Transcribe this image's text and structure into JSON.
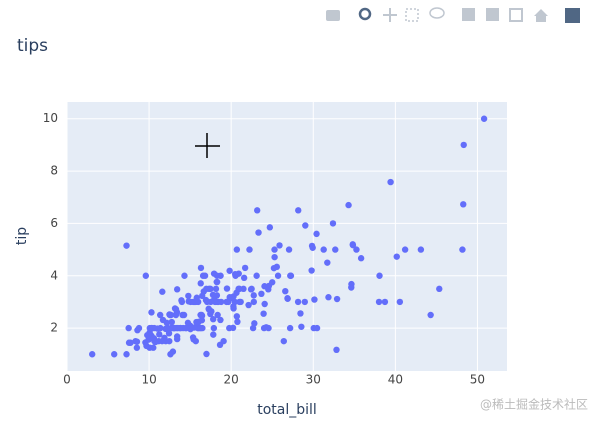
{
  "chart_data": {
    "type": "scatter",
    "title": "tips",
    "x_label": "total_bill",
    "y_label": "tip",
    "color": "#636efa",
    "grid": true,
    "xlim": [
      0,
      53.6
    ],
    "ylim": [
      0.36,
      10.64
    ],
    "xticks": [
      0,
      10,
      20,
      30,
      40,
      50
    ],
    "yticks": [
      2,
      4,
      6,
      8,
      10
    ],
    "x": [
      16.99,
      10.34,
      21.01,
      23.68,
      24.59,
      25.29,
      8.77,
      26.88,
      15.04,
      14.78,
      10.27,
      35.26,
      15.42,
      18.43,
      14.83,
      21.58,
      10.33,
      16.29,
      16.97,
      20.65,
      17.92,
      20.29,
      15.77,
      39.42,
      19.82,
      17.81,
      13.37,
      12.69,
      21.7,
      19.65,
      9.55,
      18.35,
      15.06,
      20.69,
      17.78,
      24.06,
      16.31,
      16.93,
      18.69,
      31.27,
      16.04,
      17.46,
      13.94,
      9.68,
      30.4,
      18.29,
      22.23,
      32.4,
      28.55,
      18.04,
      12.54,
      10.29,
      34.81,
      9.94,
      25.56,
      19.49,
      38.01,
      26.41,
      11.24,
      48.27,
      20.29,
      13.81,
      11.02,
      18.29,
      17.59,
      20.08,
      16.45,
      3.07,
      20.23,
      15.01,
      12.02,
      17.07,
      26.86,
      25.28,
      14.73,
      10.51,
      17.92,
      27.2,
      22.76,
      17.29,
      19.44,
      16.66,
      10.07,
      32.68,
      15.98,
      34.83,
      13.03,
      18.28,
      24.71,
      21.16,
      28.97,
      22.49,
      5.75,
      16.32,
      22.75,
      40.17,
      27.28,
      12.03,
      21.01,
      12.46,
      11.35,
      15.38,
      44.3,
      22.42,
      20.92,
      15.36,
      20.49,
      25.21,
      18.24,
      14.31,
      14.0,
      7.25,
      38.07,
      23.95,
      25.71,
      17.31,
      29.93,
      10.65,
      12.43,
      24.08,
      11.69,
      13.42,
      14.26,
      15.95,
      12.48,
      29.8,
      8.52,
      14.52,
      11.38,
      22.82,
      19.08,
      20.27,
      11.17,
      12.26,
      18.26,
      8.51,
      10.33,
      14.15,
      16.0,
      13.16,
      17.47,
      34.3,
      41.19,
      27.05,
      16.43,
      8.35,
      18.64,
      11.87,
      9.78,
      7.51,
      14.07,
      13.13,
      17.26,
      24.55,
      19.77,
      29.85,
      48.17,
      25.0,
      13.39,
      16.49,
      21.5,
      12.66,
      16.21,
      13.81,
      17.51,
      24.52,
      20.76,
      31.71,
      10.59,
      10.63,
      50.81,
      15.81,
      7.25,
      31.85,
      16.82,
      32.9,
      17.89,
      14.48,
      9.6,
      34.63,
      34.65,
      23.33,
      45.35,
      23.17,
      40.55,
      20.69,
      20.9,
      30.46,
      18.15,
      23.1,
      15.69,
      19.81,
      28.44,
      15.48,
      16.58,
      7.56,
      10.34,
      43.11,
      13.0,
      13.51,
      18.71,
      12.74,
      13.0,
      16.4,
      20.53,
      16.47,
      26.59,
      38.73,
      24.27,
      12.76,
      30.06,
      25.89,
      48.33,
      13.27,
      28.17,
      12.9,
      28.15,
      11.59,
      7.74,
      30.14,
      12.16,
      13.42,
      8.58,
      15.98,
      13.42,
      16.27,
      10.09,
      20.45,
      13.28,
      22.12,
      24.01,
      15.69,
      11.61,
      10.77,
      15.53,
      10.07,
      12.6,
      32.83,
      35.83,
      29.03,
      27.18,
      22.67,
      17.82,
      18.78
    ],
    "values": [
      1.01,
      1.66,
      3.5,
      3.31,
      3.61,
      4.71,
      2.0,
      3.12,
      1.96,
      3.23,
      1.71,
      5.0,
      1.57,
      3.0,
      3.02,
      3.92,
      1.67,
      3.71,
      3.5,
      3.35,
      4.08,
      2.75,
      2.23,
      7.58,
      3.18,
      2.34,
      2.0,
      2.0,
      4.3,
      3.0,
      1.45,
      2.5,
      3.0,
      2.45,
      3.27,
      3.6,
      2.0,
      3.07,
      2.31,
      5.0,
      2.24,
      2.54,
      3.06,
      1.32,
      5.6,
      3.0,
      5.0,
      6.0,
      2.05,
      3.0,
      2.5,
      2.6,
      5.2,
      1.56,
      4.34,
      3.51,
      3.0,
      1.5,
      1.76,
      6.73,
      3.21,
      2.0,
      1.98,
      3.76,
      2.64,
      3.15,
      2.47,
      1.0,
      2.01,
      2.09,
      1.97,
      3.0,
      3.14,
      5.0,
      2.2,
      1.25,
      3.08,
      4.0,
      3.0,
      2.71,
      3.0,
      3.4,
      1.83,
      5.0,
      2.03,
      5.17,
      2.0,
      4.0,
      5.85,
      3.0,
      3.0,
      3.5,
      1.0,
      4.3,
      3.25,
      4.73,
      4.0,
      1.5,
      3.0,
      1.5,
      2.5,
      3.0,
      2.5,
      3.48,
      4.08,
      1.64,
      4.06,
      4.29,
      3.76,
      4.0,
      3.0,
      1.0,
      4.0,
      2.55,
      4.0,
      3.5,
      5.07,
      1.5,
      1.8,
      2.92,
      2.31,
      1.68,
      2.5,
      2.0,
      2.52,
      4.2,
      1.48,
      2.0,
      2.0,
      2.18,
      1.5,
      2.83,
      1.5,
      2.0,
      3.25,
      1.25,
      2.0,
      2.0,
      2.0,
      2.75,
      3.5,
      6.7,
      5.0,
      5.0,
      2.3,
      1.5,
      1.36,
      1.63,
      1.73,
      2.0,
      2.5,
      2.0,
      2.74,
      2.0,
      2.0,
      5.14,
      5.0,
      3.75,
      2.61,
      2.0,
      3.5,
      2.5,
      2.0,
      2.0,
      3.0,
      3.48,
      2.24,
      4.5,
      1.61,
      2.0,
      10.0,
      3.16,
      5.15,
      3.18,
      4.0,
      3.11,
      2.0,
      2.0,
      4.0,
      3.55,
      3.68,
      5.65,
      3.5,
      6.5,
      3.0,
      5.0,
      3.5,
      2.0,
      3.5,
      4.0,
      1.5,
      4.19,
      2.56,
      2.02,
      4.0,
      1.44,
      2.0,
      5.0,
      2.0,
      2.0,
      4.0,
      2.01,
      2.0,
      2.5,
      4.0,
      3.23,
      3.41,
      3.0,
      2.03,
      2.23,
      2.0,
      5.16,
      9.0,
      2.5,
      6.5,
      1.1,
      3.0,
      1.5,
      1.44,
      3.09,
      2.2,
      3.48,
      1.92,
      3.0,
      1.58,
      2.5,
      2.0,
      3.0,
      2.72,
      2.88,
      2.0,
      3.0,
      3.39,
      1.47,
      3.0,
      1.25,
      1.0,
      1.17,
      4.67,
      5.92,
      2.0,
      2.0,
      1.75,
      3.0
    ]
  },
  "watermark": "@稀土掘金技术社区"
}
